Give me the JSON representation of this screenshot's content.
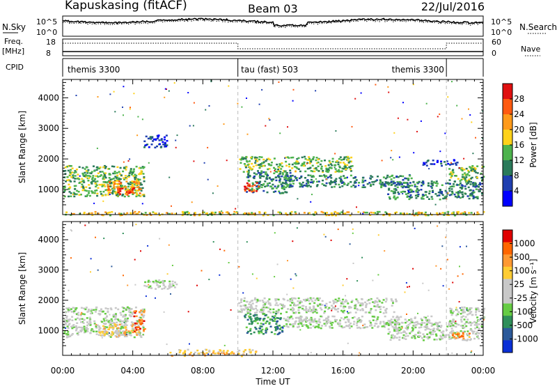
{
  "header": {
    "station": "Kapuskasing (fitACF)",
    "beam": "Beam 03",
    "date": "22/Jul/2016"
  },
  "colors": {
    "power_scale": [
      "#0000ff",
      "#1f3fb0",
      "#2a7a5a",
      "#4db34d",
      "#ffd21a",
      "#ff9a1a",
      "#ff5a10",
      "#e01010"
    ],
    "velocity_scale": [
      "#0a2fd6",
      "#2c5a9a",
      "#2f8f5a",
      "#66cc44",
      "#c8c8c8",
      "#c8c8c8",
      "#ffcc33",
      "#ff9933",
      "#ff6600",
      "#e00000"
    ]
  },
  "chart_data": [
    {
      "type": "line",
      "name": "noise-panel",
      "left_label": "N.Sky",
      "right_label": "N.Search",
      "left_ticks": [
        "10^5",
        "10^0"
      ],
      "right_ticks": [
        "10^5",
        "10^0"
      ]
    },
    {
      "type": "line",
      "name": "frequency-panel",
      "left_label": "Freq.",
      "left_unit": "[MHz]",
      "right_label": "Nave",
      "left_ticks": [
        "18",
        "8"
      ],
      "right_ticks": [
        "60",
        "0"
      ],
      "left_range": [
        8,
        18
      ],
      "right_range": [
        0,
        60
      ],
      "freq": [
        {
          "x": 0,
          "y": 10.5
        },
        {
          "x": 24,
          "y": 10.5
        }
      ],
      "nave": [
        {
          "x": 0,
          "y": 45
        },
        {
          "x": 10.0,
          "y": 45
        },
        {
          "x": 10.0,
          "y": 25
        },
        {
          "x": 21.9,
          "y": 25
        },
        {
          "x": 21.9,
          "y": 45
        },
        {
          "x": 24,
          "y": 45
        }
      ]
    },
    {
      "type": "table",
      "name": "cpid-panel",
      "label": "CPID",
      "segments": [
        {
          "start": 0,
          "end": 10.0,
          "label": "themis 3300",
          "label_at": 0.2
        },
        {
          "start": 10.0,
          "end": 21.9,
          "label": "tau (fast) 503",
          "label_at": 10.1
        },
        {
          "start": 21.9,
          "end": 24,
          "label": "themis 3300",
          "label_at": 18.7
        }
      ]
    },
    {
      "type": "heatmap",
      "name": "power-panel",
      "ylabel": "Slant Range [km]",
      "ylim": [
        180,
        4600
      ],
      "yticks": [
        1000,
        2000,
        3000,
        4000
      ],
      "colorbar_label": "Power [dB]",
      "colorbar_ticks": [
        "28",
        "24",
        "20",
        "16",
        "12",
        "8",
        "4"
      ],
      "regions": [
        {
          "t0": 0.0,
          "t1": 4.6,
          "r0": 800,
          "r1": 1800,
          "level": 3
        },
        {
          "t0": 2.5,
          "t1": 4.4,
          "r0": 850,
          "r1": 1300,
          "level": 5
        },
        {
          "t0": 3.1,
          "t1": 4.1,
          "r0": 880,
          "r1": 1080,
          "level": 7
        },
        {
          "t0": 4.6,
          "t1": 5.9,
          "r0": 2400,
          "r1": 2800,
          "level": 1
        },
        {
          "t0": 10.0,
          "t1": 16.5,
          "r0": 1600,
          "r1": 2100,
          "level": 3
        },
        {
          "t0": 10.4,
          "t1": 13.0,
          "r0": 900,
          "r1": 1600,
          "level": 2
        },
        {
          "t0": 10.3,
          "t1": 11.2,
          "r0": 950,
          "r1": 1250,
          "level": 6
        },
        {
          "t0": 12.5,
          "t1": 20.0,
          "r0": 1100,
          "r1": 1500,
          "level": 2
        },
        {
          "t0": 18.5,
          "t1": 23.9,
          "r0": 700,
          "r1": 1300,
          "level": 2
        },
        {
          "t0": 20.5,
          "t1": 22.5,
          "r0": 1800,
          "r1": 2000,
          "level": 1
        },
        {
          "t0": 22.0,
          "t1": 24.0,
          "r0": 1300,
          "r1": 1800,
          "level": 3
        },
        {
          "t0": 0.0,
          "t1": 24.0,
          "r0": 180,
          "r1": 300,
          "level": 4
        }
      ]
    },
    {
      "type": "heatmap",
      "name": "velocity-panel",
      "ylabel": "Slant Range [km]",
      "ylim": [
        180,
        4600
      ],
      "yticks": [
        1000,
        2000,
        3000,
        4000
      ],
      "colorbar_label": "Velocity [m s^-1]",
      "colorbar_ticks": [
        "1000",
        "500",
        "100",
        "25",
        "-25",
        "-100",
        "-500",
        "-1000"
      ],
      "xlabel": "Time UT",
      "xticks": [
        "00:00",
        "04:00",
        "08:00",
        "12:00",
        "16:00",
        "20:00",
        "00:00"
      ],
      "xlim": [
        0,
        24
      ],
      "regions": [
        {
          "t0": 0.0,
          "t1": 4.6,
          "r0": 800,
          "r1": 1800,
          "level": 4
        },
        {
          "t0": 2.0,
          "t1": 4.3,
          "r0": 850,
          "r1": 1250,
          "level": 6
        },
        {
          "t0": 4.0,
          "t1": 4.7,
          "r0": 1000,
          "r1": 1700,
          "level": 8
        },
        {
          "t0": 4.6,
          "t1": 6.5,
          "r0": 2400,
          "r1": 2700,
          "level": 4
        },
        {
          "t0": 10.0,
          "t1": 19.0,
          "r0": 1600,
          "r1": 2100,
          "level": 4
        },
        {
          "t0": 10.3,
          "t1": 12.5,
          "r0": 900,
          "r1": 1600,
          "level": 2
        },
        {
          "t0": 12.5,
          "t1": 21.0,
          "r0": 1100,
          "r1": 1500,
          "level": 4
        },
        {
          "t0": 18.5,
          "t1": 23.9,
          "r0": 700,
          "r1": 1300,
          "level": 4
        },
        {
          "t0": 22.2,
          "t1": 23.2,
          "r0": 750,
          "r1": 950,
          "level": 7
        },
        {
          "t0": 22.0,
          "t1": 24.0,
          "r0": 1300,
          "r1": 1800,
          "level": 4
        },
        {
          "t0": 6.0,
          "t1": 11.0,
          "r0": 180,
          "r1": 400,
          "level": 6
        }
      ]
    }
  ]
}
